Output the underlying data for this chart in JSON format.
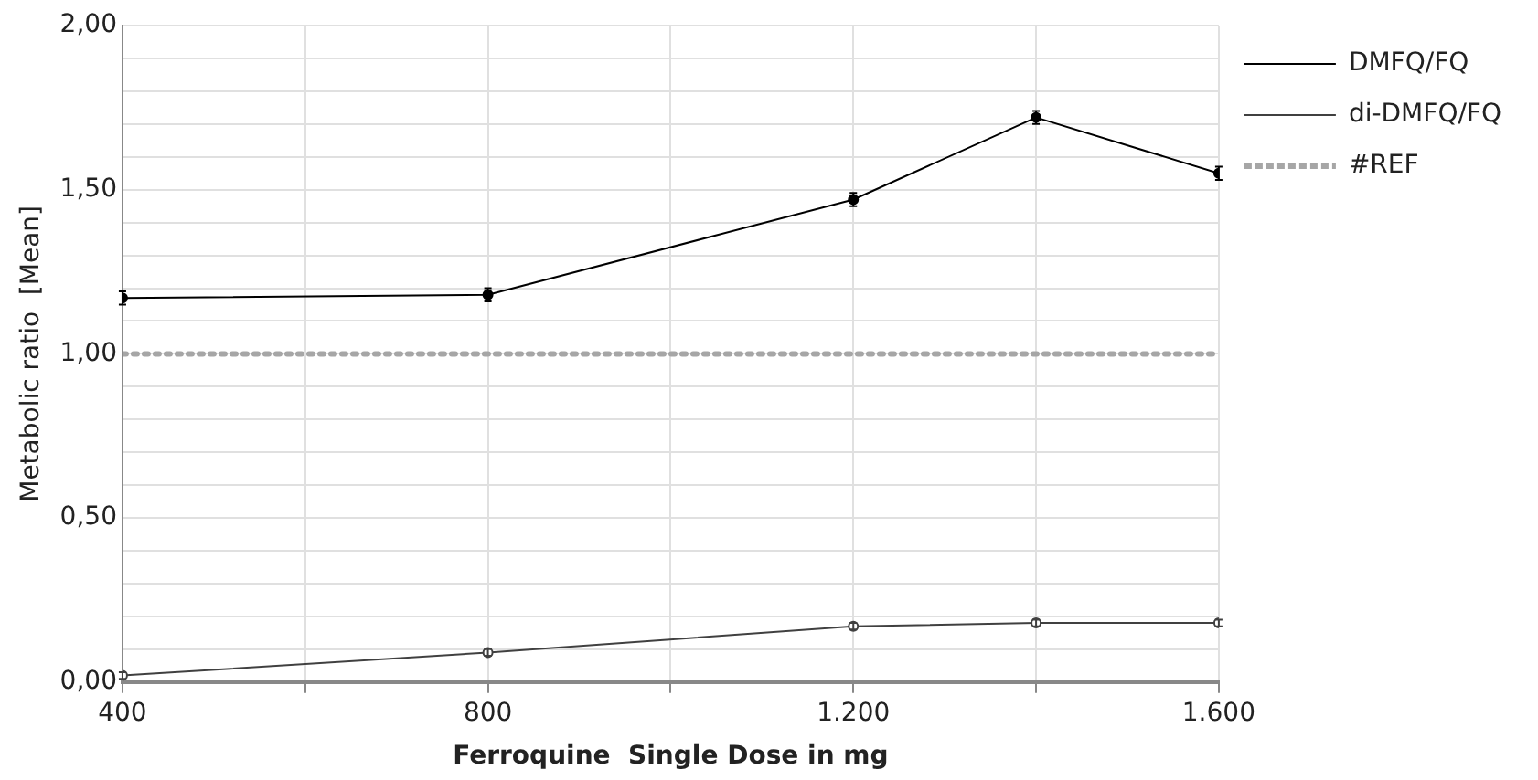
{
  "chart_data": {
    "type": "line",
    "xlabel": "Ferroquine  Single Dose in mg",
    "ylabel": "Metabolic ratio  [Mean]",
    "x": [
      400,
      800,
      1200,
      1400,
      1600
    ],
    "series": [
      {
        "name": "DMFQ/FQ",
        "color": "#000000",
        "marker": "circle",
        "values": [
          1.17,
          1.18,
          1.47,
          1.72,
          1.55
        ],
        "errors": [
          0.02,
          0.02,
          0.02,
          0.02,
          0.02
        ]
      },
      {
        "name": "di-DMFQ/FQ",
        "color": "#404040",
        "marker": "circle",
        "values": [
          0.02,
          0.09,
          0.17,
          0.18,
          0.18
        ],
        "errors": [
          0.01,
          0.01,
          0.01,
          0.01,
          0.01
        ]
      },
      {
        "name": "#REF",
        "color": "#a6a6a6",
        "marker": "none",
        "line_style": "dotted",
        "values": [
          1,
          1,
          1,
          1,
          1
        ]
      }
    ],
    "xlim": [
      400,
      1600
    ],
    "xticks": [
      400,
      {
        "value": 600,
        "label": null
      },
      800,
      {
        "value": 1000,
        "label": null
      },
      {
        "value": 1200,
        "label": "1.200"
      },
      {
        "value": 1400,
        "label": null
      },
      {
        "value": 1600,
        "label": "1.600"
      }
    ],
    "ylim": [
      0,
      2
    ],
    "yticks": [
      {
        "value": 0,
        "label": "0,00"
      },
      {
        "value": 0.1,
        "label": null
      },
      {
        "value": 0.2,
        "label": null
      },
      {
        "value": 0.3,
        "label": null
      },
      {
        "value": 0.4,
        "label": null
      },
      {
        "value": 0.5,
        "label": "0,50"
      },
      {
        "value": 0.6,
        "label": null
      },
      {
        "value": 0.7,
        "label": null
      },
      {
        "value": 0.8,
        "label": null
      },
      {
        "value": 0.9,
        "label": null
      },
      {
        "value": 1,
        "label": "1,00"
      },
      {
        "value": 1.1,
        "label": null
      },
      {
        "value": 1.2,
        "label": null
      },
      {
        "value": 1.3,
        "label": null
      },
      {
        "value": 1.4,
        "label": null
      },
      {
        "value": 1.5,
        "label": "1,50"
      },
      {
        "value": 1.6,
        "label": null
      },
      {
        "value": 1.7,
        "label": null
      },
      {
        "value": 1.8,
        "label": null
      },
      {
        "value": 1.9,
        "label": null
      },
      {
        "value": 2,
        "label": "2,00"
      }
    ],
    "grid": true,
    "legend": "right"
  }
}
